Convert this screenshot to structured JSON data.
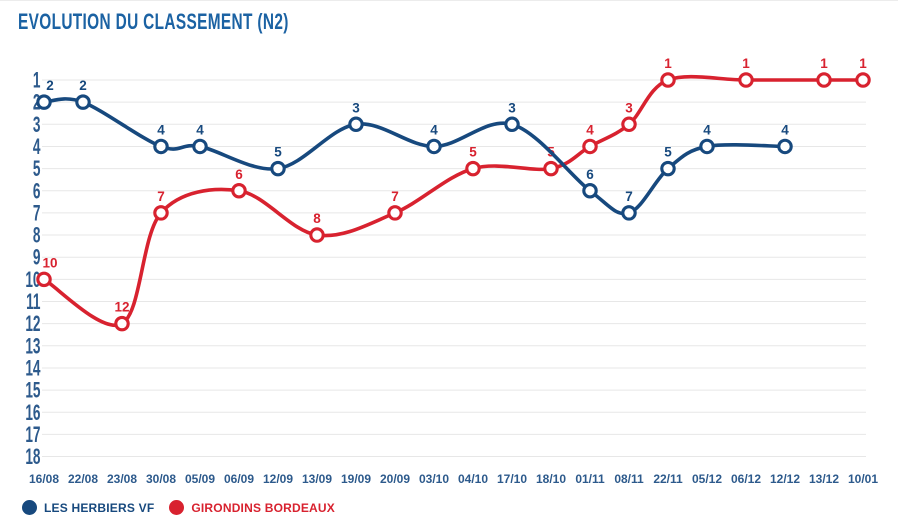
{
  "chart_data": {
    "type": "line",
    "title": "EVOLUTION DU CLASSEMENT (N2)",
    "x_categories": [
      "16/08",
      "22/08",
      "23/08",
      "30/08",
      "05/09",
      "06/09",
      "12/09",
      "13/09",
      "19/09",
      "20/09",
      "03/10",
      "04/10",
      "17/10",
      "18/10",
      "01/11",
      "08/11",
      "22/11",
      "05/12",
      "06/12",
      "12/12",
      "13/12",
      "10/01"
    ],
    "y_ticks": [
      1,
      2,
      3,
      4,
      5,
      6,
      7,
      8,
      9,
      10,
      11,
      12,
      13,
      14,
      15,
      16,
      17,
      18
    ],
    "ylim": [
      1,
      18
    ],
    "y_axis_inverted": true,
    "grid": true,
    "legend_position": "bottom-left",
    "colors": {
      "grid": "#e7e7e7",
      "axis_labels": "#2d5a8c",
      "title": "#1b62a3",
      "marker_fill": "#ffffff"
    },
    "series": [
      {
        "name": "LES HERBIERS VF",
        "color": "#17497e",
        "points": [
          [
            "16/08",
            2
          ],
          [
            "22/08",
            2
          ],
          [
            "30/08",
            4
          ],
          [
            "05/09",
            4
          ],
          [
            "12/09",
            5
          ],
          [
            "19/09",
            3
          ],
          [
            "03/10",
            4
          ],
          [
            "17/10",
            3
          ],
          [
            "01/11",
            6
          ],
          [
            "08/11",
            7
          ],
          [
            "22/11",
            5
          ],
          [
            "05/12",
            4
          ],
          [
            "12/12",
            4
          ]
        ]
      },
      {
        "name": "GIRONDINS BORDEAUX",
        "color": "#d8222f",
        "points": [
          [
            "16/08",
            10
          ],
          [
            "23/08",
            12
          ],
          [
            "30/08",
            7
          ],
          [
            "06/09",
            6
          ],
          [
            "13/09",
            8
          ],
          [
            "20/09",
            7
          ],
          [
            "04/10",
            5
          ],
          [
            "18/10",
            5
          ],
          [
            "01/11",
            4
          ],
          [
            "08/11",
            3
          ],
          [
            "22/11",
            1
          ],
          [
            "06/12",
            1
          ],
          [
            "13/12",
            1
          ],
          [
            "10/01",
            1
          ]
        ]
      }
    ]
  }
}
